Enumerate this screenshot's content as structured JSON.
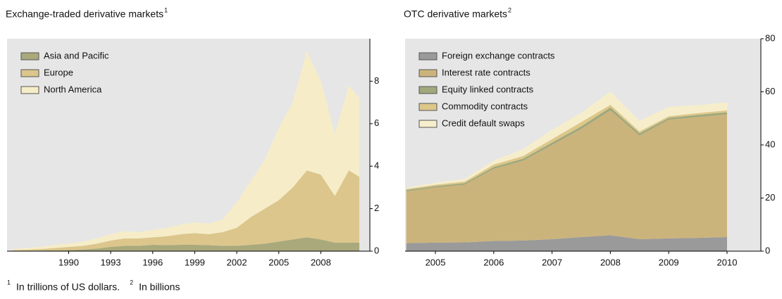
{
  "chart_data": [
    {
      "type": "area",
      "stacked": true,
      "title": "Exchange-traded derivative markets",
      "title_note": "1",
      "x": [
        1986,
        1987,
        1988,
        1989,
        1990,
        1991,
        1992,
        1993,
        1994,
        1995,
        1996,
        1997,
        1998,
        1999,
        2000,
        2001,
        2002,
        2003,
        2004,
        2005,
        2006,
        2007,
        2008,
        2009,
        2010,
        2010.75
      ],
      "series": [
        {
          "name": "Asia and Pacific",
          "color": "#a9a97c",
          "values": [
            0.02,
            0.02,
            0.03,
            0.04,
            0.05,
            0.08,
            0.12,
            0.2,
            0.25,
            0.25,
            0.3,
            0.28,
            0.3,
            0.3,
            0.28,
            0.25,
            0.25,
            0.3,
            0.35,
            0.45,
            0.55,
            0.65,
            0.55,
            0.4,
            0.4,
            0.4
          ]
        },
        {
          "name": "Europe",
          "color": "#dcc68c",
          "values": [
            0.03,
            0.05,
            0.07,
            0.11,
            0.15,
            0.17,
            0.23,
            0.3,
            0.35,
            0.35,
            0.35,
            0.42,
            0.5,
            0.55,
            0.52,
            0.65,
            0.85,
            1.3,
            1.65,
            1.95,
            2.45,
            3.15,
            3.05,
            2.2,
            3.4,
            3.1
          ]
        },
        {
          "name": "North America",
          "color": "#f6edc8",
          "values": [
            0.05,
            0.08,
            0.1,
            0.15,
            0.15,
            0.2,
            0.25,
            0.3,
            0.35,
            0.3,
            0.35,
            0.4,
            0.45,
            0.5,
            0.5,
            0.6,
            1.2,
            1.7,
            2.3,
            3.4,
            4.0,
            5.6,
            4.4,
            2.9,
            4.0,
            3.7
          ]
        }
      ],
      "xlim": [
        1985.6,
        2011.5
      ],
      "xticks": [
        1990,
        1993,
        1996,
        1999,
        2002,
        2005,
        2008
      ],
      "ylim": [
        0,
        10
      ],
      "yticks": [
        0,
        2,
        4,
        6,
        8
      ],
      "legend": "top-left"
    },
    {
      "type": "area",
      "stacked": true,
      "title": "OTC derivative markets",
      "title_note": "2",
      "x": [
        2004.5,
        2005,
        2005.5,
        2006,
        2006.5,
        2007,
        2007.5,
        2008,
        2008.5,
        2009,
        2009.5,
        2010
      ],
      "series": [
        {
          "name": "Foreign exchange contracts",
          "color": "#9a9a9a",
          "values": [
            3,
            3.2,
            3.3,
            3.8,
            4,
            4.5,
            5.3,
            6,
            4.5,
            4.8,
            5,
            5.3
          ]
        },
        {
          "name": "Interest rate contracts",
          "color": "#cbb47c",
          "values": [
            19.5,
            20.8,
            21.7,
            27.2,
            30,
            35.5,
            40.7,
            47,
            39,
            44.7,
            45.5,
            46.2
          ]
        },
        {
          "name": "Equity linked contracts",
          "color": "#a0a87c",
          "values": [
            0.5,
            0.5,
            0.6,
            0.7,
            0.8,
            0.9,
            1.0,
            1.1,
            0.9,
            0.7,
            0.8,
            0.8
          ]
        },
        {
          "name": "Commodity contracts",
          "color": "#ddc789",
          "values": [
            0.4,
            0.5,
            0.6,
            0.9,
            1.0,
            1.3,
            1.6,
            1.0,
            0.7,
            0.6,
            0.7,
            0.7
          ]
        },
        {
          "name": "Credit default swaps",
          "color": "#f6eecb",
          "values": [
            0.5,
            0.8,
            1.0,
            1.5,
            2.5,
            3.5,
            3.5,
            5,
            4,
            3.5,
            3.0,
            3.0
          ]
        }
      ],
      "xlim": [
        2004.48,
        2010.58
      ],
      "xticks": [
        2005,
        2006,
        2007,
        2008,
        2009,
        2010
      ],
      "ylim": [
        0,
        80
      ],
      "yticks": [
        0,
        20,
        40,
        60,
        80
      ],
      "legend": "top-left"
    }
  ],
  "footnotes": [
    {
      "mark": "1",
      "text": "In trillions of US dollars."
    },
    {
      "mark": "2",
      "text": "In billions"
    }
  ]
}
